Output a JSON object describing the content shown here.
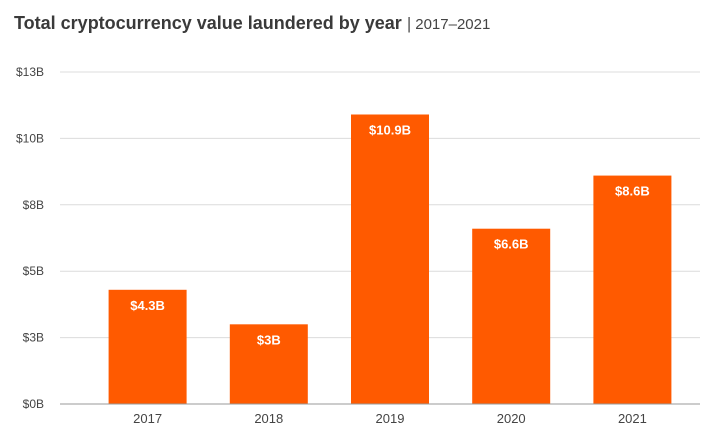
{
  "chart_data": {
    "type": "bar",
    "title": "Total cryptocurrency value laundered by year",
    "separator": "|",
    "subtitle": "2017–2021",
    "categories": [
      "2017",
      "2018",
      "2019",
      "2020",
      "2021"
    ],
    "values": [
      4.3,
      3,
      10.9,
      6.6,
      8.6
    ],
    "value_labels": [
      "$4.3B",
      "$3B",
      "$10.9B",
      "$6.6B",
      "$8.6B"
    ],
    "y_ticks": [
      0,
      3,
      5,
      8,
      10,
      13
    ],
    "y_tick_labels": [
      "$0B",
      "$3B",
      "$5B",
      "$8B",
      "$10B",
      "$13B"
    ],
    "ylim": [
      0,
      12.5
    ],
    "xlabel": "",
    "ylabel": "",
    "grid": true,
    "colors": {
      "bar": "#ff5a00",
      "grid": "#dcdcdc",
      "axis": "#999999"
    }
  }
}
